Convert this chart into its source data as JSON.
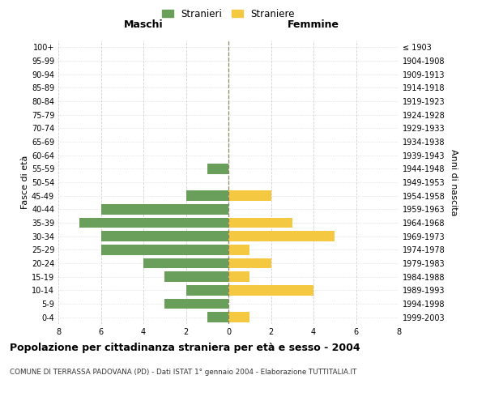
{
  "age_groups": [
    "0-4",
    "5-9",
    "10-14",
    "15-19",
    "20-24",
    "25-29",
    "30-34",
    "35-39",
    "40-44",
    "45-49",
    "50-54",
    "55-59",
    "60-64",
    "65-69",
    "70-74",
    "75-79",
    "80-84",
    "85-89",
    "90-94",
    "95-99",
    "100+"
  ],
  "birth_years": [
    "1999-2003",
    "1994-1998",
    "1989-1993",
    "1984-1988",
    "1979-1983",
    "1974-1978",
    "1969-1973",
    "1964-1968",
    "1959-1963",
    "1954-1958",
    "1949-1953",
    "1944-1948",
    "1939-1943",
    "1934-1938",
    "1929-1933",
    "1924-1928",
    "1919-1923",
    "1914-1918",
    "1909-1913",
    "1904-1908",
    "≤ 1903"
  ],
  "maschi": [
    1,
    3,
    2,
    3,
    4,
    6,
    6,
    7,
    6,
    2,
    0,
    1,
    0,
    0,
    0,
    0,
    0,
    0,
    0,
    0,
    0
  ],
  "femmine": [
    1,
    0,
    4,
    1,
    2,
    1,
    5,
    3,
    0,
    2,
    0,
    0,
    0,
    0,
    0,
    0,
    0,
    0,
    0,
    0,
    0
  ],
  "color_maschi": "#6a9e5b",
  "color_femmine": "#f5c842",
  "title": "Popolazione per cittadinanza straniera per età e sesso - 2004",
  "subtitle": "COMUNE DI TERRASSA PADOVANA (PD) - Dati ISTAT 1° gennaio 2004 - Elaborazione TUTTITALIA.IT",
  "ylabel_left": "Fasce di età",
  "ylabel_right": "Anni di nascita",
  "xlabel_left": "Maschi",
  "xlabel_right": "Femmine",
  "legend_stranieri": "Stranieri",
  "legend_straniere": "Straniere",
  "xlim": 8,
  "background_color": "#ffffff",
  "grid_color": "#cccccc"
}
